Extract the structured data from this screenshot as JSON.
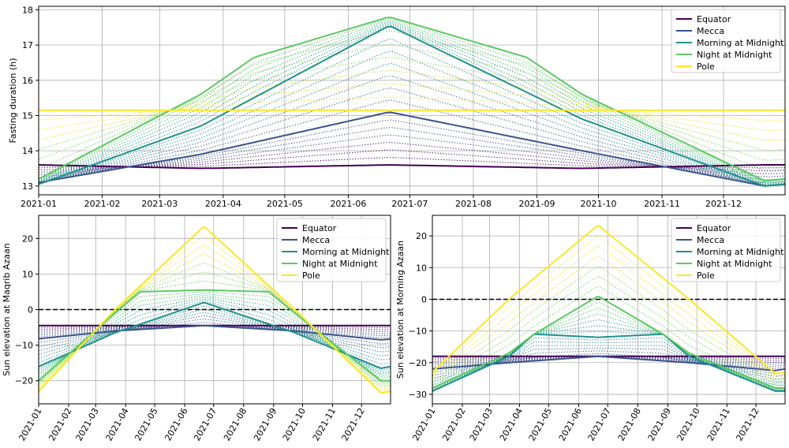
{
  "months": [
    "2021-01",
    "2021-02",
    "2021-03",
    "2021-04",
    "2021-05",
    "2021-06",
    "2021-07",
    "2021-08",
    "2021-09",
    "2021-10",
    "2021-11",
    "2021-12"
  ],
  "colors": {
    "Equator": "#440154",
    "Mecca": "#3b528b",
    "Morning at Midnight": "#21918c",
    "Night at Midnight": "#5ec962",
    "Pole": "#fde725"
  },
  "chart_data": [
    {
      "type": "line",
      "ylabel": "Fasting duration (h)",
      "x_range": [
        "2021-01-01",
        "2021-12-31"
      ],
      "ylim": [
        12.75,
        18.1
      ],
      "yticks": [
        13,
        14,
        15,
        16,
        17,
        18
      ],
      "grid": true,
      "legend_position": "top-right",
      "series": [
        {
          "name": "Equator",
          "x": [
            "2021-01-01",
            "2021-03-21",
            "2021-06-21",
            "2021-09-23",
            "2021-12-21",
            "2021-12-31"
          ],
          "values": [
            13.6,
            13.5,
            13.6,
            13.5,
            13.6,
            13.6
          ]
        },
        {
          "name": "Mecca",
          "x": [
            "2021-01-01",
            "2021-03-21",
            "2021-06-21",
            "2021-09-23",
            "2021-12-21",
            "2021-12-31"
          ],
          "values": [
            13.1,
            13.9,
            15.1,
            14.0,
            13.0,
            13.05
          ]
        },
        {
          "name": "Morning at Midnight",
          "x": [
            "2021-01-01",
            "2021-03-21",
            "2021-06-21",
            "2021-09-23",
            "2021-12-21",
            "2021-12-31"
          ],
          "values": [
            13.05,
            14.7,
            17.55,
            14.9,
            13.0,
            13.05
          ]
        },
        {
          "name": "Night at Midnight",
          "x": [
            "2021-01-01",
            "2021-03-21",
            "2021-04-16",
            "2021-06-21",
            "2021-08-27",
            "2021-09-23",
            "2021-12-21",
            "2021-12-31"
          ],
          "values": [
            13.2,
            15.6,
            16.65,
            17.8,
            16.65,
            15.6,
            13.15,
            13.2
          ]
        },
        {
          "name": "Pole",
          "x": [
            "2021-01-01",
            "2021-12-31"
          ],
          "values": [
            15.15,
            15.15
          ]
        }
      ]
    },
    {
      "type": "line",
      "ylabel": "Sun elevation at Maqrib Azaan",
      "x_range": [
        "2021-01-01",
        "2021-12-31"
      ],
      "ylim": [
        -26.5,
        26.5
      ],
      "yticks": [
        -20,
        -10,
        0,
        10,
        20
      ],
      "reference_line": 0,
      "grid": true,
      "legend_position": "top-right",
      "series": [
        {
          "name": "Equator",
          "x": [
            "2021-01-01",
            "2021-12-31"
          ],
          "values": [
            -4.5,
            -4.5
          ]
        },
        {
          "name": "Mecca",
          "x": [
            "2021-01-01",
            "2021-03-21",
            "2021-06-21",
            "2021-09-23",
            "2021-12-21",
            "2021-12-31"
          ],
          "values": [
            -8.2,
            -6.0,
            -4.5,
            -6.0,
            -8.5,
            -8.3
          ]
        },
        {
          "name": "Morning at Midnight",
          "x": [
            "2021-01-01",
            "2021-03-21",
            "2021-06-21",
            "2021-09-23",
            "2021-12-21",
            "2021-12-31"
          ],
          "values": [
            -16.0,
            -6.5,
            2.0,
            -6.5,
            -16.5,
            -16.0
          ]
        },
        {
          "name": "Night at Midnight",
          "x": [
            "2021-01-01",
            "2021-03-21",
            "2021-04-16",
            "2021-06-21",
            "2021-08-27",
            "2021-09-23",
            "2021-12-21",
            "2021-12-31"
          ],
          "values": [
            -20.0,
            -1.0,
            5.0,
            5.5,
            5.0,
            -1.0,
            -20.0,
            -20.0
          ]
        },
        {
          "name": "Pole",
          "x": [
            "2021-01-01",
            "2021-03-21",
            "2021-06-21",
            "2021-09-23",
            "2021-12-21",
            "2021-12-31"
          ],
          "values": [
            -23.0,
            0.0,
            23.4,
            0.0,
            -23.4,
            -23.0
          ]
        }
      ]
    },
    {
      "type": "line",
      "ylabel": "Sun elevation at Morning Azaan",
      "x_range": [
        "2021-01-01",
        "2021-12-31"
      ],
      "ylim": [
        -33.0,
        26.5
      ],
      "yticks": [
        -30,
        -20,
        -10,
        0,
        10,
        20
      ],
      "reference_line": 0,
      "grid": true,
      "legend_position": "top-right",
      "series": [
        {
          "name": "Equator",
          "x": [
            "2021-01-01",
            "2021-12-31"
          ],
          "values": [
            -18.0,
            -18.0
          ]
        },
        {
          "name": "Mecca",
          "x": [
            "2021-01-01",
            "2021-03-21",
            "2021-06-21",
            "2021-09-23",
            "2021-12-21",
            "2021-12-31"
          ],
          "values": [
            -22.0,
            -20.0,
            -18.0,
            -20.0,
            -22.5,
            -22.0
          ]
        },
        {
          "name": "Morning at Midnight",
          "x": [
            "2021-01-01",
            "2021-03-21",
            "2021-04-16",
            "2021-06-21",
            "2021-08-27",
            "2021-09-23",
            "2021-12-21",
            "2021-12-31"
          ],
          "values": [
            -29.0,
            -18.0,
            -11.0,
            -12.0,
            -11.0,
            -18.0,
            -29.0,
            -29.0
          ]
        },
        {
          "name": "Night at Midnight",
          "x": [
            "2021-01-01",
            "2021-03-21",
            "2021-04-16",
            "2021-06-21",
            "2021-08-27",
            "2021-09-23",
            "2021-12-21",
            "2021-12-31"
          ],
          "values": [
            -28.0,
            -17.0,
            -11.0,
            1.0,
            -11.0,
            -17.0,
            -28.0,
            -28.0
          ]
        },
        {
          "name": "Pole",
          "x": [
            "2021-01-01",
            "2021-03-21",
            "2021-06-21",
            "2021-09-23",
            "2021-12-21",
            "2021-12-31"
          ],
          "values": [
            -23.0,
            0.0,
            23.4,
            0.0,
            -23.4,
            -23.0
          ]
        }
      ]
    }
  ]
}
